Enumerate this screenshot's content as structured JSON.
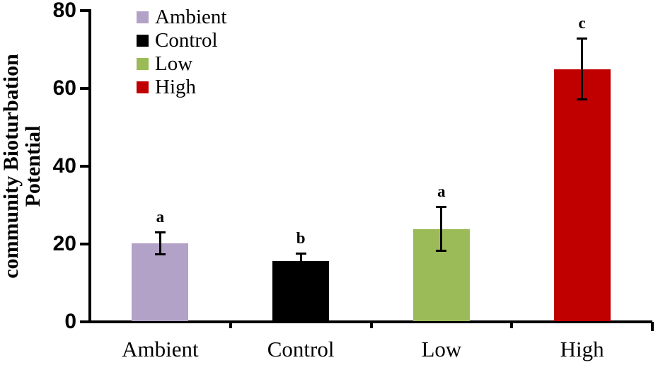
{
  "chart_data": {
    "type": "bar",
    "title": "",
    "ylabel_lines": [
      "community Bioturbation",
      "Potential"
    ],
    "xlabel": "",
    "categories": [
      "Ambient",
      "Control",
      "Low",
      "High"
    ],
    "values": [
      20.2,
      15.7,
      23.9,
      65.0
    ],
    "errors": [
      2.9,
      1.9,
      5.8,
      7.9
    ],
    "sig_letters": [
      "a",
      "b",
      "a",
      "c"
    ],
    "colors": [
      "#b3a2c7",
      "#000000",
      "#9bbb59",
      "#c00000"
    ],
    "bar_borders": [
      "#a untuk",
      "#000000",
      "#8aa84f",
      "#b00000"
    ],
    "ylim": [
      0,
      80
    ],
    "yticks": [
      0,
      20,
      40,
      60,
      80
    ],
    "grid": false,
    "legend_position": "upper-left-inside",
    "legend": [
      {
        "label": "Ambient",
        "color": "#b3a2c7"
      },
      {
        "label": "Control",
        "color": "#000000"
      },
      {
        "label": "Low",
        "color": "#9bbb59"
      },
      {
        "label": "High",
        "color": "#c00000"
      }
    ]
  }
}
